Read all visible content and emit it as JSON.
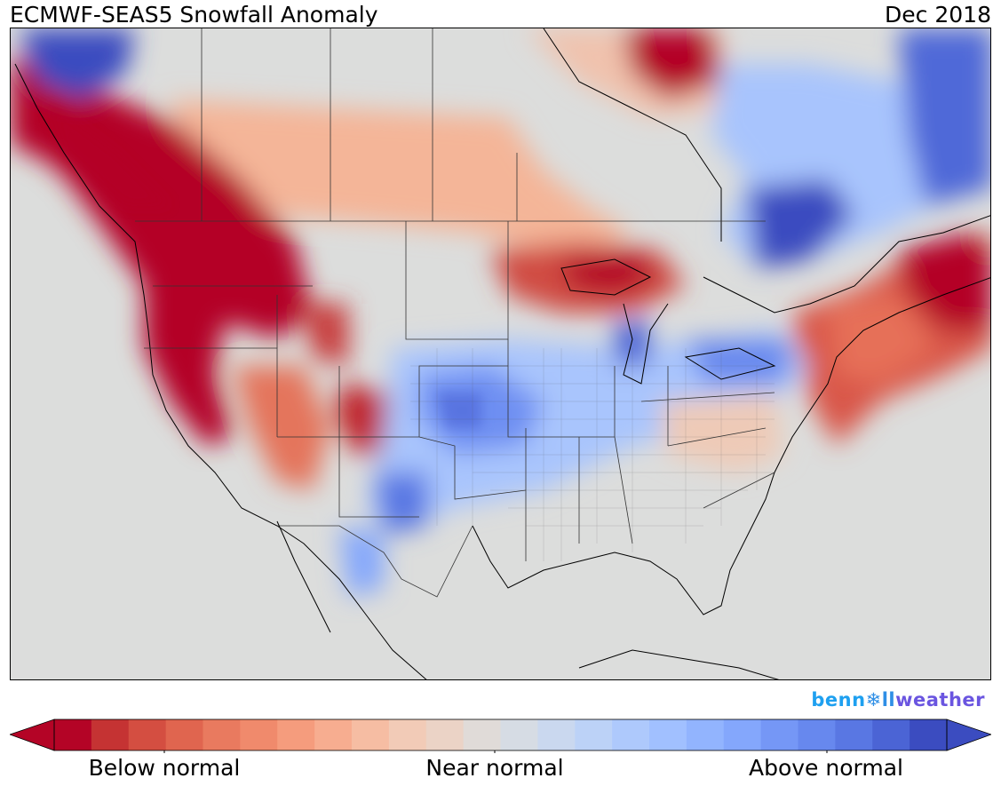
{
  "header": {
    "title": "ECMWF-SEAS5 Snowfall Anomaly",
    "period": "Dec 2018"
  },
  "brand": {
    "part1": "benn",
    "icon": "snowflake-icon",
    "part2": "ll",
    "part3": "weather"
  },
  "legend": {
    "labels": [
      "Below normal",
      "Near normal",
      "Above normal"
    ],
    "colors": [
      "#b40426",
      "#c53333",
      "#d44e41",
      "#e0654f",
      "#e97a5f",
      "#f08a6c",
      "#f59c7d",
      "#f7ad90",
      "#f6bda3",
      "#f2cbb7",
      "#ebd3c6",
      "#e0dbd8",
      "#d6dce4",
      "#cad8ef",
      "#bcd2f7",
      "#aec9fc",
      "#a1c0ff",
      "#92b4fe",
      "#84a7fc",
      "#7597f6",
      "#6788ee",
      "#5977e3",
      "#4b64d5",
      "#3b4cc0"
    ],
    "low_color": "#b40426",
    "high_color": "#3b4cc0",
    "neutral_color": "#dcdddc"
  }
}
